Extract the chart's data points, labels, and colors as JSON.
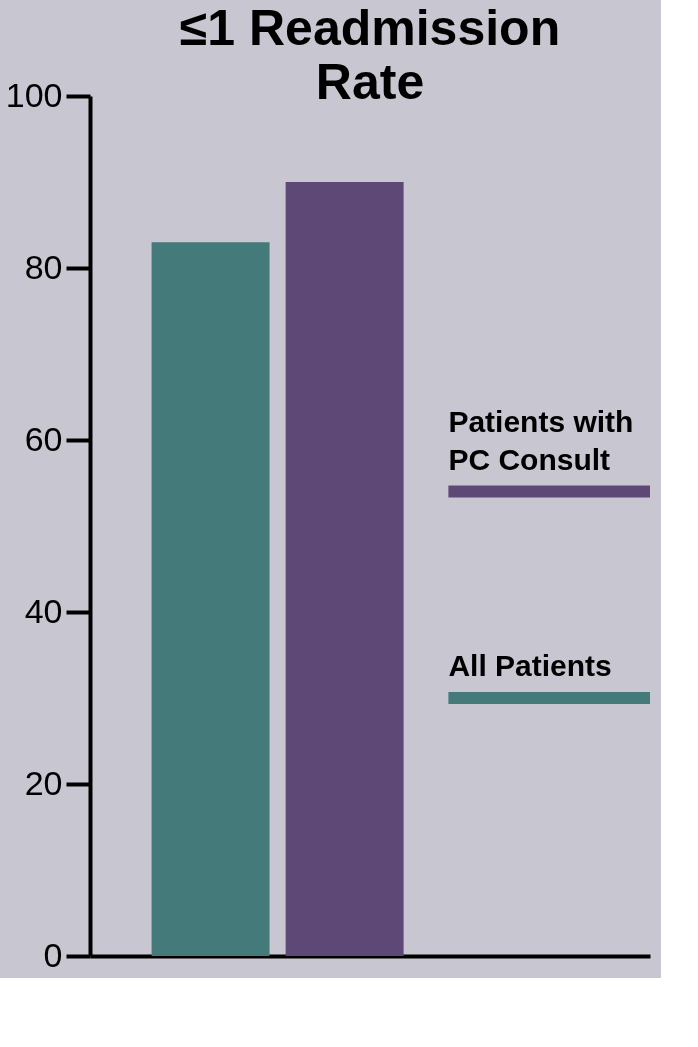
{
  "chart_data": {
    "type": "bar",
    "title": "≤1 Readmission Rate",
    "categories": [
      null
    ],
    "series": [
      {
        "name": "All Patients",
        "color": "#447a7a",
        "values": [
          83
        ]
      },
      {
        "name": "Patients with PC Consult",
        "color": "#5e4876",
        "values": [
          90
        ]
      }
    ],
    "ylim": [
      0,
      100
    ],
    "yticks": [
      0,
      20,
      40,
      60,
      80,
      100
    ],
    "grid": false,
    "legend": "right",
    "tick_labels": "y"
  }
}
